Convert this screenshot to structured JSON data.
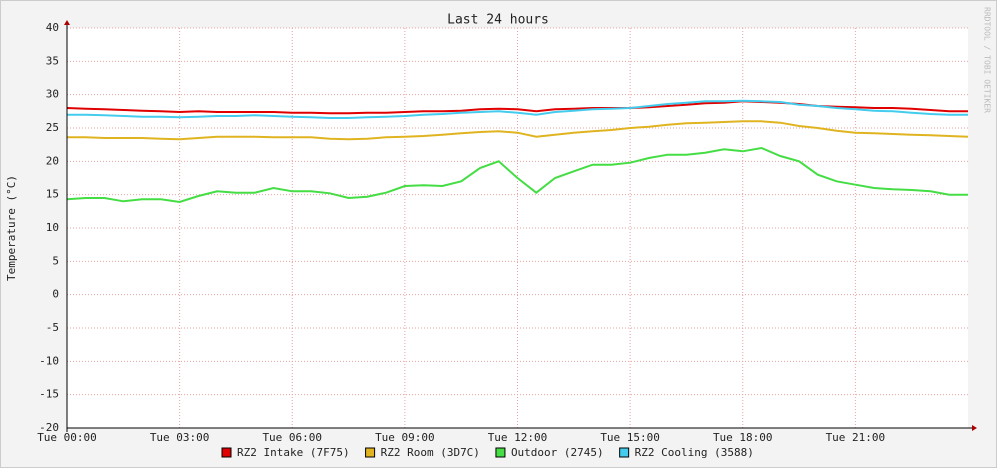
{
  "chart_data": {
    "type": "line",
    "title": "Last 24 hours",
    "y_label": "Temperature (°C)",
    "watermark": "RRDTOOL / TOBI OETIKER",
    "x": [
      0,
      0.5,
      1,
      1.5,
      2,
      2.5,
      3,
      3.5,
      4,
      4.5,
      5,
      5.5,
      6,
      6.5,
      7,
      7.5,
      8,
      8.5,
      9,
      9.5,
      10,
      10.5,
      11,
      11.5,
      12,
      12.5,
      13,
      13.5,
      14,
      14.5,
      15,
      15.5,
      16,
      16.5,
      17,
      17.5,
      18,
      18.5,
      19,
      19.5,
      20,
      20.5,
      21,
      21.5,
      22,
      22.5,
      23,
      23.5,
      24
    ],
    "xlim": [
      0,
      24
    ],
    "xticks": [
      {
        "value": 0,
        "label": "Tue 00:00"
      },
      {
        "value": 3,
        "label": "Tue 03:00"
      },
      {
        "value": 6,
        "label": "Tue 06:00"
      },
      {
        "value": 9,
        "label": "Tue 09:00"
      },
      {
        "value": 12,
        "label": "Tue 12:00"
      },
      {
        "value": 15,
        "label": "Tue 15:00"
      },
      {
        "value": 18,
        "label": "Tue 18:00"
      },
      {
        "value": 21,
        "label": "Tue 21:00"
      }
    ],
    "ylim": [
      -20,
      40
    ],
    "yticks": [
      -20,
      -15,
      -10,
      -5,
      0,
      5,
      10,
      15,
      20,
      25,
      30,
      35,
      40
    ],
    "grid": true,
    "series": [
      {
        "name": "RZ2 Intake (7F75)",
        "color": "#e00000",
        "values": [
          28,
          27.9,
          27.8,
          27.7,
          27.6,
          27.5,
          27.4,
          27.5,
          27.4,
          27.4,
          27.4,
          27.4,
          27.3,
          27.3,
          27.2,
          27.2,
          27.3,
          27.3,
          27.4,
          27.5,
          27.5,
          27.6,
          27.8,
          27.9,
          27.8,
          27.5,
          27.8,
          27.9,
          28,
          28,
          28,
          28.1,
          28.3,
          28.5,
          28.7,
          28.8,
          29,
          28.9,
          28.8,
          28.6,
          28.3,
          28.2,
          28.1,
          28,
          28,
          27.9,
          27.7,
          27.5,
          27.5
        ]
      },
      {
        "name": "RZ2 Room (3D7C)",
        "color": "#e0b420",
        "values": [
          23.6,
          23.6,
          23.5,
          23.5,
          23.5,
          23.4,
          23.3,
          23.5,
          23.7,
          23.7,
          23.7,
          23.6,
          23.6,
          23.6,
          23.4,
          23.3,
          23.4,
          23.6,
          23.7,
          23.8,
          24,
          24.2,
          24.4,
          24.5,
          24.3,
          23.7,
          24,
          24.3,
          24.5,
          24.7,
          25,
          25.2,
          25.5,
          25.7,
          25.8,
          25.9,
          26,
          26,
          25.8,
          25.3,
          25,
          24.6,
          24.3,
          24.2,
          24.1,
          24,
          23.9,
          23.8,
          23.7
        ]
      },
      {
        "name": "Outdoor (2745)",
        "color": "#44dd44",
        "values": [
          14.3,
          14.5,
          14.5,
          14,
          14.3,
          14.3,
          13.9,
          14.8,
          15.5,
          15.3,
          15.3,
          16,
          15.5,
          15.5,
          15.2,
          14.5,
          14.7,
          15.3,
          16.3,
          16.4,
          16.3,
          17,
          19,
          20,
          17.5,
          15.3,
          17.5,
          18.5,
          19.5,
          19.5,
          19.8,
          20.5,
          21,
          21,
          21.3,
          21.8,
          21.5,
          22,
          20.8,
          20,
          18,
          17,
          16.5,
          16,
          15.8,
          15.7,
          15.5,
          15,
          15
        ]
      },
      {
        "name": "RZ2 Cooling (3588)",
        "color": "#44ccee",
        "values": [
          27,
          27,
          26.9,
          26.8,
          26.7,
          26.7,
          26.6,
          26.7,
          26.8,
          26.8,
          26.9,
          26.8,
          26.7,
          26.6,
          26.5,
          26.5,
          26.6,
          26.7,
          26.8,
          27,
          27.1,
          27.3,
          27.4,
          27.5,
          27.3,
          27,
          27.4,
          27.6,
          27.8,
          27.9,
          28,
          28.3,
          28.6,
          28.8,
          29,
          29,
          29.1,
          29,
          28.9,
          28.5,
          28.3,
          28,
          27.8,
          27.6,
          27.5,
          27.3,
          27.1,
          27,
          27
        ]
      }
    ]
  }
}
